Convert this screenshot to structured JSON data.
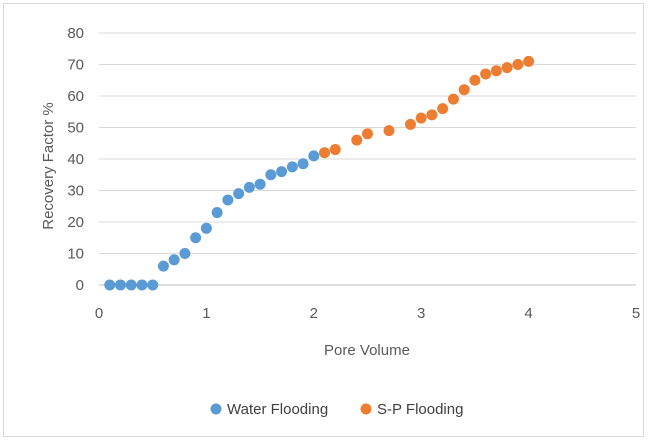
{
  "chart_data": {
    "type": "scatter",
    "title": "",
    "xlabel": "Pore Volume",
    "ylabel": "Recovery Factor %",
    "xlim": [
      0,
      5
    ],
    "ylim": [
      0,
      80
    ],
    "xticks": [
      0,
      1,
      2,
      3,
      4,
      5
    ],
    "yticks": [
      0,
      10,
      20,
      30,
      40,
      50,
      60,
      70,
      80
    ],
    "grid": "horizontal",
    "legend_position": "bottom",
    "series": [
      {
        "name": "Water Flooding",
        "color": "#5b9bd5",
        "points": [
          [
            0.1,
            0
          ],
          [
            0.2,
            0
          ],
          [
            0.3,
            0
          ],
          [
            0.4,
            0
          ],
          [
            0.5,
            0
          ],
          [
            0.6,
            6
          ],
          [
            0.7,
            8
          ],
          [
            0.8,
            10
          ],
          [
            0.9,
            15
          ],
          [
            1.0,
            18
          ],
          [
            1.1,
            23
          ],
          [
            1.2,
            27
          ],
          [
            1.3,
            29
          ],
          [
            1.4,
            31
          ],
          [
            1.5,
            32
          ],
          [
            1.6,
            35
          ],
          [
            1.7,
            36
          ],
          [
            1.8,
            37.5
          ],
          [
            1.9,
            38.5
          ],
          [
            2.0,
            41
          ]
        ]
      },
      {
        "name": "S-P  Flooding",
        "color": "#ed7d31",
        "points": [
          [
            2.1,
            42
          ],
          [
            2.2,
            43
          ],
          [
            2.4,
            46
          ],
          [
            2.5,
            48
          ],
          [
            2.7,
            49
          ],
          [
            2.9,
            51
          ],
          [
            3.0,
            53
          ],
          [
            3.1,
            54
          ],
          [
            3.2,
            56
          ],
          [
            3.3,
            59
          ],
          [
            3.4,
            62
          ],
          [
            3.5,
            65
          ],
          [
            3.6,
            67
          ],
          [
            3.7,
            68
          ],
          [
            3.8,
            69
          ],
          [
            3.9,
            70
          ],
          [
            4.0,
            71
          ]
        ]
      }
    ]
  }
}
